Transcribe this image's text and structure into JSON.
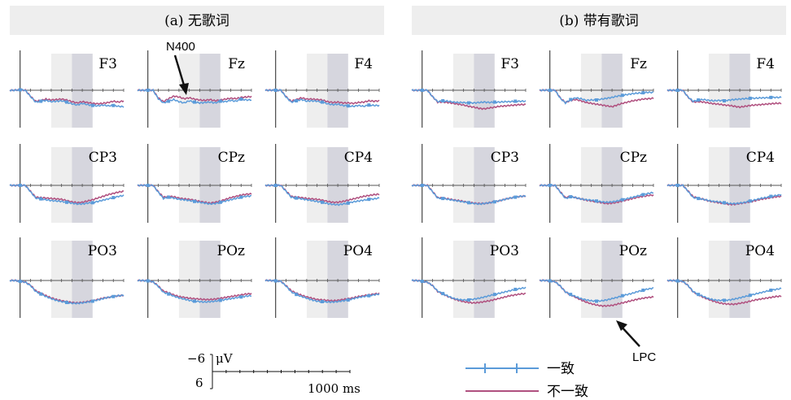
{
  "chart_data": {
    "type": "line",
    "time_range_ms": [
      -100,
      1000
    ],
    "ylim_uV": [
      6,
      -6
    ],
    "axis_orientation": "negative-up",
    "shaded_windows_ms": [
      [
        300,
        500
      ],
      [
        500,
        700
      ]
    ],
    "shaded_colors": [
      "#eeeeee",
      "#d6d6de"
    ],
    "legend": [
      {
        "label": "一致",
        "color": "#5b9bd9",
        "marker": "tick"
      },
      {
        "label": "不一致",
        "color": "#b0507f",
        "marker": "none"
      }
    ],
    "panels": [
      {
        "title": "(a) 无歌词",
        "electrodes": [
          {
            "label": "F3",
            "congruent": [
              0,
              0,
              -0.1,
              0,
              1.5,
              2.8,
              2.6,
              2.4,
              2.7,
              2.6,
              2.5,
              2.8,
              3.2,
              3.5,
              3.1,
              3.4,
              3.6,
              3.7,
              3.5,
              3.7,
              3.6,
              3.8,
              3.9
            ],
            "incongruent": [
              0,
              0,
              -0.1,
              0,
              1.4,
              2.6,
              2.4,
              2.1,
              2.3,
              2.2,
              2.1,
              2.3,
              2.7,
              3.0,
              2.7,
              2.9,
              3.1,
              3.2,
              3.1,
              2.9,
              2.6,
              2.8,
              2.5
            ]
          },
          {
            "label": "Fz",
            "congruent": [
              0,
              0,
              0,
              0,
              2.0,
              3.0,
              2.6,
              2.2,
              2.7,
              3.0,
              2.5,
              2.8,
              3.0,
              2.9,
              2.8,
              3.0,
              2.6,
              2.7,
              2.4,
              2.6,
              2.1,
              2.3,
              2.3
            ],
            "incongruent": [
              0,
              0,
              0,
              0,
              1.8,
              2.7,
              2.0,
              1.4,
              1.6,
              2.0,
              1.8,
              2.1,
              2.3,
              2.4,
              2.2,
              2.5,
              2.3,
              2.1,
              1.9,
              2.0,
              1.7,
              1.6,
              1.5
            ]
          },
          {
            "label": "F4",
            "congruent": [
              0,
              0,
              0,
              0,
              1.6,
              2.8,
              2.5,
              2.2,
              2.6,
              2.5,
              2.6,
              2.8,
              3.2,
              3.4,
              3.3,
              3.6,
              3.7,
              3.8,
              3.6,
              3.8,
              3.5,
              3.6,
              3.6
            ],
            "incongruent": [
              0,
              0,
              0,
              0,
              1.5,
              2.6,
              2.2,
              1.8,
              2.1,
              2.1,
              2.2,
              2.3,
              2.7,
              2.9,
              2.8,
              3.0,
              3.0,
              3.1,
              2.9,
              2.8,
              2.5,
              2.6,
              2.5
            ]
          },
          {
            "label": "CP3",
            "congruent": [
              0,
              0,
              0,
              0,
              1.5,
              3.0,
              3.2,
              3.4,
              3.6,
              3.7,
              3.8,
              4.0,
              4.2,
              4.4,
              4.4,
              4.2,
              4.1,
              3.8,
              3.5,
              3.2,
              2.9,
              2.6,
              2.4
            ],
            "incongruent": [
              0,
              0,
              0,
              0,
              1.4,
              2.8,
              2.9,
              3.0,
              3.1,
              3.2,
              3.3,
              3.6,
              3.9,
              4.1,
              4.0,
              3.7,
              3.4,
              3.0,
              2.6,
              2.2,
              1.9,
              1.6,
              1.4
            ]
          },
          {
            "label": "CPz",
            "congruent": [
              0,
              0,
              0,
              0,
              1.6,
              3.1,
              2.8,
              3.0,
              3.3,
              3.4,
              3.6,
              3.8,
              4.0,
              4.2,
              4.4,
              4.3,
              4.0,
              3.7,
              3.4,
              3.1,
              2.8,
              2.6,
              2.5
            ],
            "incongruent": [
              0,
              0,
              0,
              0,
              1.5,
              2.8,
              2.6,
              2.7,
              3.0,
              3.2,
              3.3,
              3.5,
              3.8,
              4.0,
              4.2,
              4.0,
              3.7,
              3.3,
              2.9,
              2.6,
              2.3,
              2.1,
              2.0
            ]
          },
          {
            "label": "CP4",
            "congruent": [
              0,
              0,
              0,
              0,
              1.4,
              2.8,
              3.0,
              3.2,
              3.4,
              3.6,
              3.8,
              4.0,
              4.3,
              4.5,
              4.6,
              4.4,
              4.2,
              3.9,
              3.7,
              3.5,
              3.3,
              3.2,
              3.0
            ],
            "incongruent": [
              0,
              0,
              0,
              0,
              1.3,
              2.6,
              2.8,
              2.9,
              3.1,
              3.2,
              3.3,
              3.5,
              3.8,
              4.0,
              4.0,
              3.8,
              3.5,
              3.2,
              2.9,
              2.6,
              2.4,
              2.2,
              2.1
            ]
          },
          {
            "label": "PO3",
            "congruent": [
              0,
              0,
              0.2,
              0.4,
              1.2,
              2.6,
              3.2,
              3.8,
              4.3,
              4.7,
              5.0,
              5.2,
              5.4,
              5.4,
              5.3,
              5.1,
              4.9,
              4.6,
              4.3,
              4.0,
              3.8,
              3.6,
              3.5
            ],
            "incongruent": [
              0,
              0,
              0.2,
              0.4,
              1.1,
              2.4,
              3.0,
              3.6,
              4.1,
              4.5,
              4.8,
              5.0,
              5.2,
              5.3,
              5.2,
              5.0,
              4.8,
              4.5,
              4.2,
              4.0,
              3.8,
              3.6,
              3.5
            ]
          },
          {
            "label": "POz",
            "congruent": [
              0,
              0,
              0.1,
              0.3,
              1.4,
              2.8,
              3.2,
              3.7,
              4.1,
              4.4,
              4.7,
              4.9,
              5.0,
              5.1,
              5.0,
              4.9,
              4.7,
              4.5,
              4.3,
              4.1,
              3.9,
              3.7,
              3.6
            ],
            "incongruent": [
              0,
              0,
              0.1,
              0.3,
              1.3,
              2.5,
              2.9,
              3.4,
              3.8,
              4.0,
              4.2,
              4.3,
              4.4,
              4.5,
              4.5,
              4.4,
              4.2,
              4.0,
              3.8,
              3.6,
              3.4,
              3.2,
              3.1
            ]
          },
          {
            "label": "PO4",
            "congruent": [
              0,
              0,
              0.1,
              0.2,
              1.3,
              2.7,
              3.3,
              3.8,
              4.2,
              4.6,
              4.9,
              5.0,
              5.1,
              5.1,
              5.0,
              4.8,
              4.6,
              4.3,
              4.0,
              3.8,
              3.6,
              3.4,
              3.2
            ],
            "incongruent": [
              0,
              0,
              0.1,
              0.2,
              1.2,
              2.4,
              3.0,
              3.5,
              3.9,
              4.2,
              4.5,
              4.6,
              4.7,
              4.8,
              4.7,
              4.5,
              4.3,
              4.1,
              3.8,
              3.6,
              3.4,
              3.2,
              3.1
            ]
          }
        ]
      },
      {
        "title": "(b) 带有歌词",
        "electrodes": [
          {
            "label": "F3",
            "congruent": [
              0,
              0,
              0,
              0,
              1.5,
              2.7,
              2.5,
              2.6,
              2.8,
              2.9,
              2.9,
              3.0,
              3.0,
              2.9,
              2.8,
              2.9,
              2.8,
              2.8,
              2.7,
              2.7,
              2.6,
              2.6,
              2.6
            ],
            "incongruent": [
              0,
              0,
              0,
              0,
              1.5,
              2.8,
              2.8,
              2.9,
              3.1,
              3.3,
              3.5,
              3.8,
              4.0,
              4.3,
              4.4,
              4.2,
              4.0,
              3.8,
              3.7,
              3.6,
              3.5,
              3.4,
              3.4
            ]
          },
          {
            "label": "Fz",
            "congruent": [
              0,
              0,
              0,
              0,
              1.9,
              3.0,
              2.2,
              1.8,
              2.0,
              2.4,
              2.3,
              2.3,
              2.1,
              1.9,
              1.7,
              1.4,
              1.2,
              1.0,
              0.8,
              0.7,
              0.6,
              0.5,
              0.5
            ],
            "incongruent": [
              0,
              0,
              0,
              0,
              1.8,
              2.9,
              2.4,
              2.2,
              2.5,
              2.9,
              3.1,
              3.3,
              3.5,
              3.7,
              3.9,
              3.5,
              3.1,
              2.8,
              2.5,
              2.3,
              2.1,
              2.0,
              1.9
            ]
          },
          {
            "label": "F4",
            "congruent": [
              0,
              0,
              0,
              0,
              1.6,
              2.6,
              2.3,
              2.2,
              2.4,
              2.5,
              2.4,
              2.5,
              2.3,
              2.2,
              2.1,
              2.0,
              1.9,
              1.9,
              1.8,
              1.8,
              1.7,
              1.7,
              1.7
            ],
            "incongruent": [
              0,
              0,
              0,
              0,
              1.6,
              2.8,
              2.7,
              2.8,
              3.0,
              3.2,
              3.3,
              3.5,
              3.6,
              3.8,
              4.0,
              3.8,
              3.6,
              3.5,
              3.4,
              3.3,
              3.2,
              3.1,
              3.1
            ]
          },
          {
            "label": "CP3",
            "congruent": [
              0,
              0,
              0,
              0,
              1.5,
              3.0,
              3.1,
              3.3,
              3.5,
              3.7,
              3.9,
              4.1,
              4.3,
              4.4,
              4.3,
              4.1,
              3.9,
              3.6,
              3.3,
              3.0,
              2.8,
              2.6,
              2.5
            ],
            "incongruent": [
              0,
              0,
              0,
              0,
              1.4,
              2.9,
              3.0,
              3.2,
              3.4,
              3.6,
              3.8,
              4.0,
              4.2,
              4.3,
              4.3,
              4.1,
              3.9,
              3.6,
              3.3,
              3.0,
              2.8,
              2.6,
              2.5
            ]
          },
          {
            "label": "CPz",
            "congruent": [
              0,
              0,
              0,
              0,
              1.6,
              3.1,
              2.7,
              2.9,
              3.2,
              3.4,
              3.5,
              3.7,
              3.9,
              4.0,
              3.9,
              3.7,
              3.4,
              3.1,
              2.8,
              2.5,
              2.2,
              1.9,
              1.7
            ],
            "incongruent": [
              0,
              0,
              0,
              0,
              1.5,
              2.9,
              2.6,
              2.9,
              3.2,
              3.5,
              3.7,
              3.9,
              4.1,
              4.3,
              4.2,
              4.0,
              3.7,
              3.4,
              3.1,
              2.8,
              2.6,
              2.4,
              2.3
            ]
          },
          {
            "label": "CP4",
            "congruent": [
              0,
              0,
              0,
              0,
              1.4,
              2.9,
              3.1,
              3.3,
              3.6,
              3.8,
              3.9,
              4.1,
              4.3,
              4.3,
              4.2,
              4.0,
              3.7,
              3.4,
              3.1,
              2.9,
              2.6,
              2.4,
              2.2
            ],
            "incongruent": [
              0,
              0,
              0,
              0,
              1.3,
              2.7,
              3.0,
              3.3,
              3.7,
              3.9,
              4.1,
              4.3,
              4.5,
              4.5,
              4.3,
              4.1,
              3.9,
              3.6,
              3.3,
              3.1,
              2.9,
              2.7,
              2.6
            ]
          },
          {
            "label": "PO3",
            "congruent": [
              0,
              0,
              0.2,
              0.4,
              1.2,
              2.5,
              3.1,
              3.7,
              4.2,
              4.5,
              4.6,
              4.6,
              4.4,
              4.2,
              3.9,
              3.6,
              3.3,
              3.0,
              2.7,
              2.4,
              2.1,
              1.9,
              1.7
            ],
            "incongruent": [
              0,
              0,
              0.2,
              0.4,
              1.2,
              2.6,
              3.2,
              3.8,
              4.3,
              4.7,
              5.0,
              5.2,
              5.3,
              5.2,
              5.0,
              4.8,
              4.5,
              4.2,
              3.9,
              3.6,
              3.4,
              3.2,
              3.1
            ]
          },
          {
            "label": "POz",
            "congruent": [
              0,
              0,
              0.1,
              0.3,
              1.3,
              2.7,
              3.3,
              3.8,
              4.3,
              4.6,
              4.8,
              4.9,
              4.8,
              4.6,
              4.3,
              4.0,
              3.6,
              3.3,
              3.0,
              2.6,
              2.3,
              2.0,
              1.8
            ],
            "incongruent": [
              0,
              0,
              0.1,
              0.3,
              1.3,
              2.7,
              3.4,
              4.0,
              4.6,
              5.1,
              5.5,
              5.8,
              6.0,
              6.0,
              5.9,
              5.6,
              5.3,
              5.0,
              4.7,
              4.4,
              4.2,
              4.0,
              3.9
            ]
          },
          {
            "label": "PO4",
            "congruent": [
              0,
              0,
              0.1,
              0.2,
              1.2,
              2.6,
              3.3,
              3.8,
              4.3,
              4.6,
              4.7,
              4.7,
              4.6,
              4.4,
              4.1,
              3.8,
              3.5,
              3.2,
              2.9,
              2.6,
              2.3,
              2.1,
              1.9
            ],
            "incongruent": [
              0,
              0,
              0.1,
              0.2,
              1.2,
              2.7,
              3.4,
              4.0,
              4.5,
              4.9,
              5.3,
              5.5,
              5.6,
              5.6,
              5.4,
              5.2,
              4.9,
              4.6,
              4.4,
              4.2,
              4.0,
              3.8,
              3.7
            ]
          }
        ]
      }
    ],
    "annotations": [
      {
        "text": "N400",
        "panel": 0,
        "electrode": 1
      },
      {
        "text": "LPC",
        "panel": 1,
        "electrode": 7
      }
    ],
    "scale_bar": {
      "y_top": "−6",
      "y_unit": "μV",
      "y_bottom": "6",
      "x_label": "1000 ms"
    }
  }
}
